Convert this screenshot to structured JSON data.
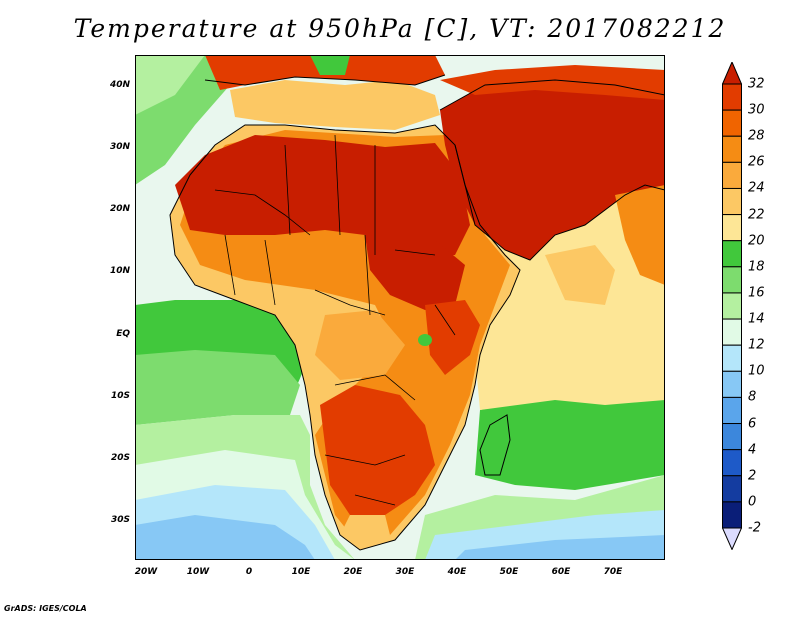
{
  "title": "Temperature at 950hPa [C], VT: 2017082212",
  "credit": "GrADS: IGES/COLA",
  "axes": {
    "lat_ticks": [
      "40N",
      "30N",
      "20N",
      "10N",
      "EQ",
      "10S",
      "20S",
      "30S"
    ],
    "lon_ticks": [
      "20W",
      "10W",
      "0",
      "10E",
      "20E",
      "30E",
      "40E",
      "50E",
      "60E",
      "70E"
    ]
  },
  "colorbar": {
    "labels": [
      "32",
      "30",
      "28",
      "26",
      "24",
      "22",
      "20",
      "18",
      "16",
      "14",
      "12",
      "10",
      "8",
      "6",
      "4",
      "2",
      "0",
      "-2"
    ],
    "colors": [
      "#c81e00",
      "#e23c00",
      "#f06400",
      "#f58c14",
      "#faaa3c",
      "#fcc864",
      "#fde696",
      "#41c83c",
      "#7ddc6e",
      "#b4f0a0",
      "#e1fae6",
      "#b4e6fa",
      "#87c8f5",
      "#5aa5eb",
      "#3c87dc",
      "#1e5ac8",
      "#143ca0",
      "#0a1e78",
      "#dcdcff"
    ]
  },
  "map": {
    "domain": {
      "lon": [
        -23,
        80
      ],
      "lat": [
        -37,
        45
      ]
    },
    "ocean_color": "#e9f7ee",
    "regions": [
      {
        "name": "north-atlantic-warm",
        "color": "#fde696"
      },
      {
        "name": "atlantic-tropical",
        "color": "#7ddc6e"
      },
      {
        "name": "south-atlantic-cool",
        "color": "#b4e6fa"
      },
      {
        "name": "southern-ocean",
        "color": "#87c8f5"
      },
      {
        "name": "indian-ocean",
        "color": "#fde696"
      },
      {
        "name": "indian-ocean-band",
        "color": "#7ddc6e"
      },
      {
        "name": "sahara-hot",
        "color": "#c81e00"
      },
      {
        "name": "arabia-hot",
        "color": "#c81e00"
      },
      {
        "name": "mediterranean",
        "color": "#fcc864"
      }
    ]
  }
}
